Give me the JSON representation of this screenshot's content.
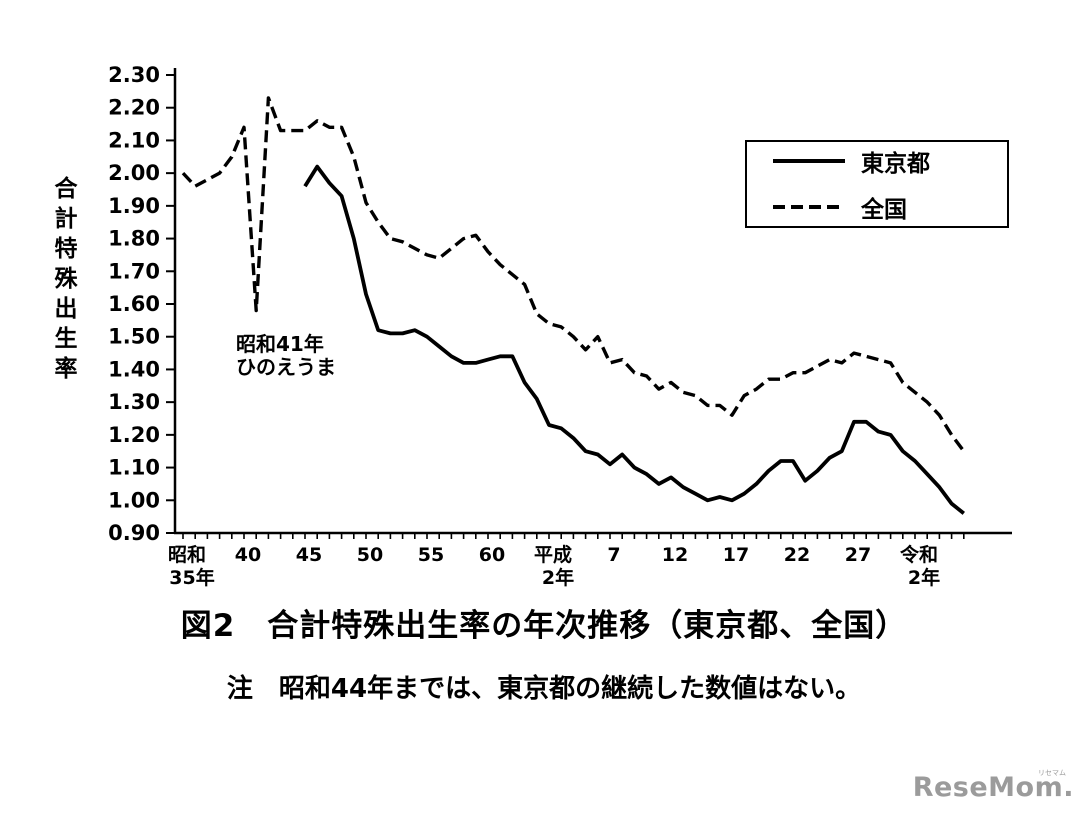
{
  "chart_data": {
    "type": "line",
    "title": "図2　合計特殊出生率の年次推移（東京都、全国）",
    "ylabel": "合計特殊出生率",
    "ylim": [
      0.9,
      2.3
    ],
    "x_range": [
      1960,
      2024
    ],
    "grid": false,
    "legend_position": "top-right",
    "y_ticks": [
      "0.90",
      "1.00",
      "1.10",
      "1.20",
      "1.30",
      "1.40",
      "1.50",
      "1.60",
      "1.70",
      "1.80",
      "1.90",
      "2.00",
      "2.10",
      "2.20",
      "2.30"
    ],
    "x_ticks": [
      {
        "year": 1960,
        "line1": "昭和",
        "line2": "35年"
      },
      {
        "year": 1965,
        "line1": "40"
      },
      {
        "year": 1970,
        "line1": "45"
      },
      {
        "year": 1975,
        "line1": "50"
      },
      {
        "year": 1980,
        "line1": "55"
      },
      {
        "year": 1985,
        "line1": "60"
      },
      {
        "year": 1990,
        "line1": "平成",
        "line2": "2年"
      },
      {
        "year": 1995,
        "line1": "7"
      },
      {
        "year": 2000,
        "line1": "12"
      },
      {
        "year": 2005,
        "line1": "17"
      },
      {
        "year": 2010,
        "line1": "22"
      },
      {
        "year": 2015,
        "line1": "27"
      },
      {
        "year": 2020,
        "line1": "令和",
        "line2": "2年"
      }
    ],
    "annotation": {
      "line1": "昭和41年",
      "line2": "ひのえうま"
    },
    "series": [
      {
        "name": "東京都",
        "line_style": "solid",
        "start_year": 1970,
        "values": [
          1.96,
          2.02,
          1.97,
          1.93,
          1.8,
          1.63,
          1.52,
          1.51,
          1.51,
          1.52,
          1.5,
          1.47,
          1.44,
          1.42,
          1.42,
          1.43,
          1.44,
          1.44,
          1.36,
          1.31,
          1.23,
          1.22,
          1.19,
          1.15,
          1.14,
          1.11,
          1.14,
          1.1,
          1.08,
          1.05,
          1.07,
          1.04,
          1.02,
          1.0,
          1.01,
          1.0,
          1.02,
          1.05,
          1.09,
          1.12,
          1.12,
          1.06,
          1.09,
          1.13,
          1.15,
          1.24,
          1.24,
          1.21,
          1.2,
          1.15,
          1.12,
          1.08,
          1.04,
          0.99,
          0.96
        ]
      },
      {
        "name": "全国",
        "line_style": "dashed",
        "start_year": 1960,
        "values": [
          2.0,
          1.96,
          1.98,
          2.0,
          2.05,
          2.14,
          1.58,
          2.23,
          2.13,
          2.13,
          2.13,
          2.16,
          2.14,
          2.14,
          2.05,
          1.91,
          1.85,
          1.8,
          1.79,
          1.77,
          1.75,
          1.74,
          1.77,
          1.8,
          1.81,
          1.76,
          1.72,
          1.69,
          1.66,
          1.57,
          1.54,
          1.53,
          1.5,
          1.46,
          1.5,
          1.42,
          1.43,
          1.39,
          1.38,
          1.34,
          1.36,
          1.33,
          1.32,
          1.29,
          1.29,
          1.26,
          1.32,
          1.34,
          1.37,
          1.37,
          1.39,
          1.39,
          1.41,
          1.43,
          1.42,
          1.45,
          1.44,
          1.43,
          1.42,
          1.36,
          1.33,
          1.3,
          1.26,
          1.2,
          1.15
        ]
      }
    ],
    "line_color": "#000000"
  },
  "caption": {
    "title": "図2　合計特殊出生率の年次推移（東京都、全国）",
    "note": "注　昭和44年までは、東京都の継続した数値はない。"
  },
  "watermark": {
    "text": "ReseMom",
    "dot": ".",
    "ruby": "リセマム"
  }
}
